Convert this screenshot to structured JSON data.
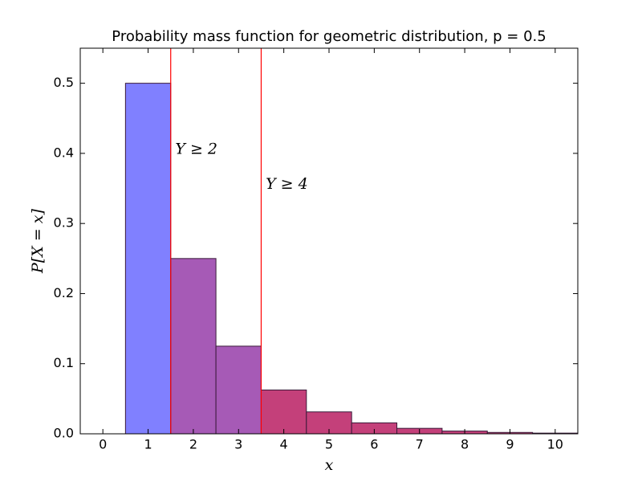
{
  "chart_data": {
    "type": "bar",
    "title": "Probability mass function for geometric distribution, p = 0.5",
    "xlabel": "x",
    "ylabel": "P[X = x]",
    "x": [
      1,
      2,
      3,
      4,
      5,
      6,
      7,
      8,
      9,
      10
    ],
    "values": [
      0.5,
      0.25,
      0.125,
      0.0625,
      0.03125,
      0.015625,
      0.0078125,
      0.00390625,
      0.001953125,
      0.0009765625
    ],
    "colors": [
      "#8080ff",
      "#a65ab6",
      "#a65ab6",
      "#c4407a",
      "#c4407a",
      "#c4407a",
      "#c4407a",
      "#c4407a",
      "#c4407a",
      "#c4407a"
    ],
    "edgecolor": "#3a1a3a",
    "xlim": [
      -0.5,
      10.5
    ],
    "ylim": [
      0,
      0.55
    ],
    "xticks": [
      0,
      1,
      2,
      3,
      4,
      5,
      6,
      7,
      8,
      9,
      10
    ],
    "yticks": [
      {
        "value": 0,
        "label": "0.0"
      },
      0.1,
      0.2,
      0.3,
      0.4,
      0.5
    ],
    "vlines": [
      1.5,
      3.5
    ],
    "vline_color": "#ff0000",
    "annotations": [
      {
        "text": "Y ≥ 2",
        "x": 1.6,
        "y": 0.405
      },
      {
        "text": "Y ≥ 4",
        "x": 3.6,
        "y": 0.355
      }
    ]
  }
}
